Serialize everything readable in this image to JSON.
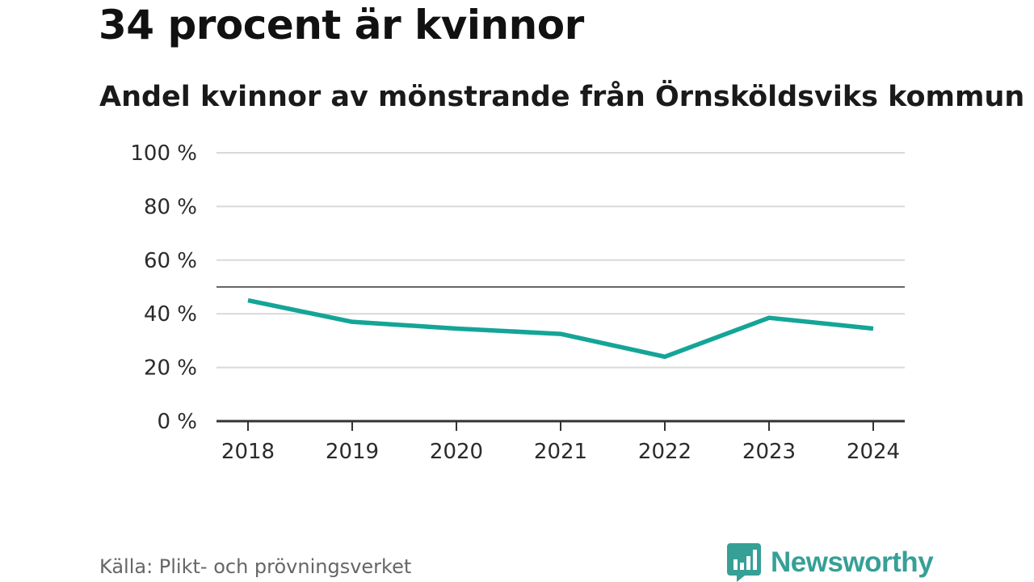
{
  "chart_data": {
    "type": "line",
    "title": "34 procent är kvinnor",
    "subtitle": "Andel kvinnor av mönstrande från Örnsköldsviks kommun",
    "x": [
      "2018",
      "2019",
      "2020",
      "2021",
      "2022",
      "2023",
      "2024"
    ],
    "series": [
      {
        "name": "Andel kvinnor",
        "values": [
          45,
          37,
          34.5,
          32.5,
          24,
          38.5,
          34.5
        ]
      }
    ],
    "ylim": [
      0,
      100
    ],
    "yticks": [
      0,
      20,
      40,
      60,
      80,
      100
    ],
    "ytick_labels": [
      "0 %",
      "20 %",
      "40 %",
      "60 %",
      "80 %",
      "100 %"
    ],
    "reference_line": 50,
    "grid": true,
    "colors": {
      "line": "#14a597",
      "grid": "#d9d9d9",
      "reference": "#666666",
      "axis": "#333333"
    }
  },
  "source": "Källa: Plikt- och prövningsverket",
  "brand": {
    "name": "Newsworthy",
    "icon": "newsworthy-logo-icon",
    "color": "#36a097"
  }
}
